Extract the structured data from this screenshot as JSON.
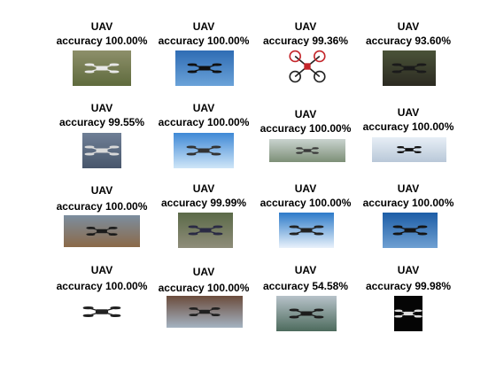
{
  "figure": {
    "tiles": [
      {
        "title": "UAV",
        "accuracy": "accuracy 100.00%"
      },
      {
        "title": "UAV",
        "accuracy": "accuracy 100.00%"
      },
      {
        "title": "UAV",
        "accuracy": "accuracy 99.36%"
      },
      {
        "title": "UAV",
        "accuracy": "accuracy 93.60%"
      },
      {
        "title": "UAV",
        "accuracy": "accuracy 99.55%"
      },
      {
        "title": "UAV",
        "accuracy": "accuracy 100.00%"
      },
      {
        "title": "UAV",
        "accuracy": "accuracy 100.00%"
      },
      {
        "title": "UAV",
        "accuracy": "accuracy 100.00%"
      },
      {
        "title": "UAV",
        "accuracy": "accuracy 100.00%"
      },
      {
        "title": "UAV",
        "accuracy": "accuracy 99.99%"
      },
      {
        "title": "UAV",
        "accuracy": "accuracy 100.00%"
      },
      {
        "title": "UAV",
        "accuracy": "accuracy 100.00%"
      },
      {
        "title": "UAV",
        "accuracy": "accuracy 100.00%"
      },
      {
        "title": "UAV",
        "accuracy": "accuracy 100.00%"
      },
      {
        "title": "UAV",
        "accuracy": "accuracy 54.58%"
      },
      {
        "title": "UAV",
        "accuracy": "accuracy 99.98%"
      }
    ]
  }
}
